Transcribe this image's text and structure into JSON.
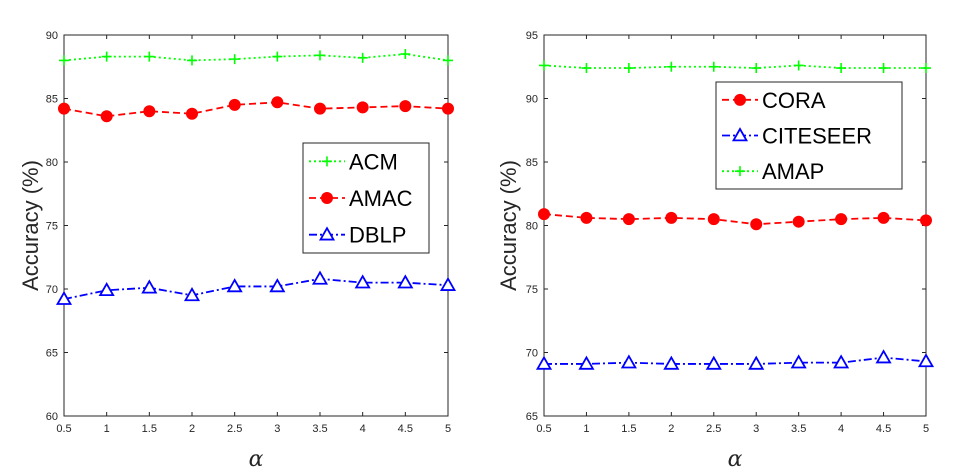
{
  "chart_data": [
    {
      "type": "line",
      "x": [
        0.5,
        1,
        1.5,
        2,
        2.5,
        3,
        3.5,
        4,
        4.5,
        5
      ],
      "xticks": [
        "0.5",
        "1",
        "1.5",
        "2",
        "2.5",
        "3",
        "3.5",
        "4",
        "4.5",
        "5"
      ],
      "xlim": [
        0.5,
        5
      ],
      "ylim": [
        60,
        90
      ],
      "yticks": [
        "60",
        "65",
        "70",
        "75",
        "80",
        "85",
        "90"
      ],
      "xlabel": "α",
      "ylabel": "Accuracy (%)",
      "legend_position": "center-right",
      "grid": false,
      "series": [
        {
          "name": "ACM",
          "color": "#00ff00",
          "marker": "plus",
          "dash": "dotted",
          "values": [
            88.0,
            88.3,
            88.3,
            88.0,
            88.1,
            88.3,
            88.4,
            88.2,
            88.5,
            88.0
          ]
        },
        {
          "name": "AMAC",
          "color": "#ff0000",
          "marker": "circle",
          "dash": "dashed",
          "values": [
            84.2,
            83.6,
            84.0,
            83.8,
            84.5,
            84.7,
            84.2,
            84.3,
            84.4,
            84.2
          ]
        },
        {
          "name": "DBLP",
          "color": "#0000ff",
          "marker": "triangle",
          "dash": "dashdot",
          "values": [
            69.2,
            69.9,
            70.1,
            69.5,
            70.2,
            70.2,
            70.8,
            70.5,
            70.5,
            70.3
          ]
        }
      ]
    },
    {
      "type": "line",
      "x": [
        0.5,
        1,
        1.5,
        2,
        2.5,
        3,
        3.5,
        4,
        4.5,
        5
      ],
      "xticks": [
        "0.5",
        "1",
        "1.5",
        "2",
        "2.5",
        "3",
        "3.5",
        "4",
        "4.5",
        "5"
      ],
      "xlim": [
        0.5,
        5
      ],
      "ylim": [
        65,
        95
      ],
      "yticks": [
        "65",
        "70",
        "75",
        "80",
        "85",
        "90",
        "95"
      ],
      "xlabel": "α",
      "ylabel": "Accuracy (%)",
      "legend_position": "top-right",
      "grid": false,
      "series": [
        {
          "name": "CORA",
          "color": "#ff0000",
          "marker": "circle",
          "dash": "dashed",
          "values": [
            80.9,
            80.6,
            80.5,
            80.6,
            80.5,
            80.1,
            80.3,
            80.5,
            80.6,
            80.4
          ]
        },
        {
          "name": "CITESEER",
          "color": "#0000ff",
          "marker": "triangle",
          "dash": "dashdot",
          "values": [
            69.1,
            69.1,
            69.2,
            69.1,
            69.1,
            69.1,
            69.2,
            69.2,
            69.6,
            69.3
          ]
        },
        {
          "name": "AMAP",
          "color": "#00ff00",
          "marker": "plus",
          "dash": "dotted",
          "values": [
            92.6,
            92.4,
            92.4,
            92.5,
            92.5,
            92.4,
            92.6,
            92.4,
            92.4,
            92.4
          ]
        }
      ]
    }
  ]
}
